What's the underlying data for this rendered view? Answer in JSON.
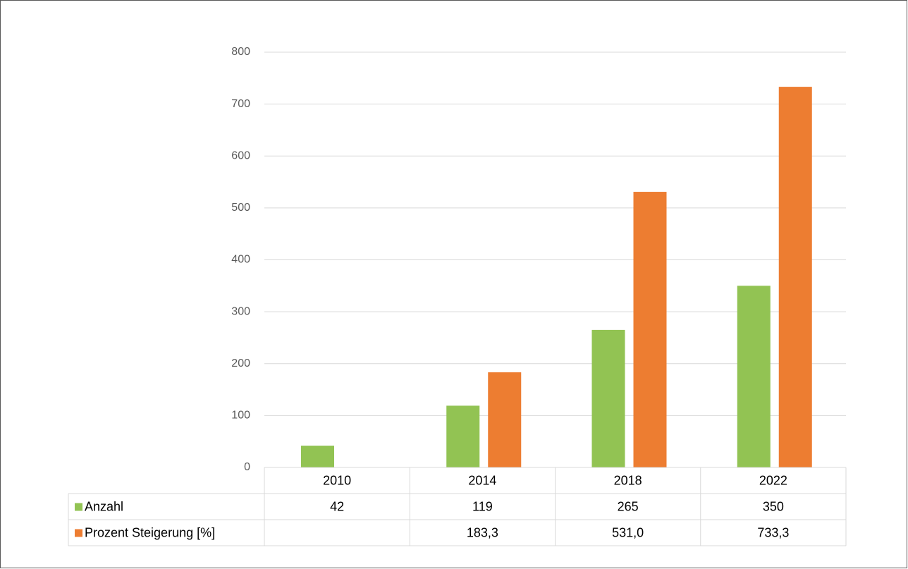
{
  "chart_data": {
    "type": "bar",
    "categories": [
      "2010",
      "2014",
      "2018",
      "2022"
    ],
    "series": [
      {
        "name": "Anzahl",
        "color": "#92c353",
        "values": [
          42,
          119,
          265,
          350
        ]
      },
      {
        "name": "Prozent Steigerung [%]",
        "color": "#ed7d31",
        "values": [
          null,
          183.3,
          531.0,
          733.3
        ],
        "value_labels": [
          null,
          "183,3",
          "531,0",
          "733,3"
        ]
      }
    ],
    "ylim": [
      0,
      800
    ],
    "yticks": [
      0,
      100,
      200,
      300,
      400,
      500,
      600,
      700,
      800
    ],
    "grid": true
  }
}
